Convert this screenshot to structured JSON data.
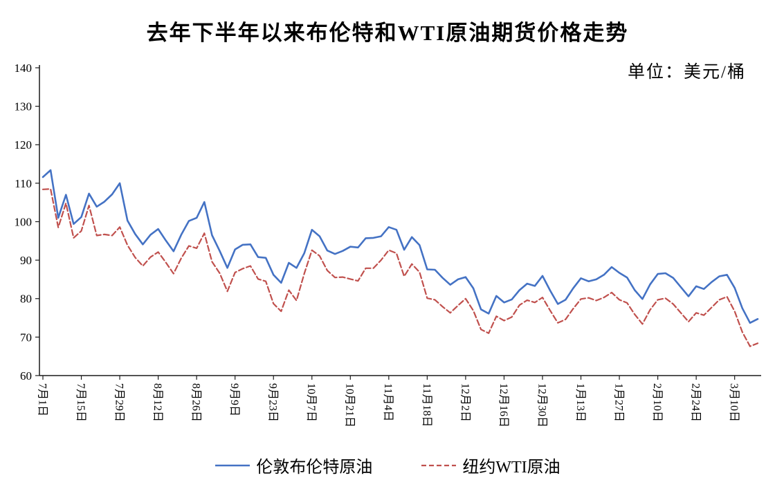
{
  "chart": {
    "title": "去年下半年以来布伦特和WTI原油期货价格走势",
    "unit_label": "单位：美元/桶"
  },
  "chart_data": {
    "type": "line",
    "title": "去年下半年以来布伦特和WTI原油期货价格走势",
    "unit": "美元/桶",
    "xlabel": "",
    "ylabel": "",
    "ylim": [
      60,
      140
    ],
    "ytick_step": 10,
    "grid": false,
    "legend_position": "bottom",
    "x_tick_labels": [
      "7月1日",
      "7月15日",
      "7月29日",
      "8月12日",
      "8月26日",
      "9月9日",
      "9月23日",
      "10月7日",
      "10月21日",
      "11月4日",
      "11月18日",
      "12月2日",
      "12月16日",
      "12月30日",
      "1月13日",
      "1月27日",
      "2月10日",
      "2月24日",
      "3月10日"
    ],
    "x_ticks_every": 5,
    "series": [
      {
        "name": "伦敦布伦特原油",
        "color": "#4472C4",
        "dash": "solid",
        "width": 2.6,
        "values": [
          111.6,
          113.4,
          101.0,
          107.0,
          99.4,
          101.2,
          107.3,
          103.9,
          105.2,
          107.1,
          110.0,
          100.3,
          96.8,
          94.1,
          96.6,
          98.1,
          95.1,
          92.3,
          96.6,
          100.2,
          101.0,
          105.1,
          96.5,
          92.4,
          88.0,
          92.8,
          94.0,
          94.1,
          90.8,
          90.6,
          86.2,
          84.1,
          89.3,
          88.0,
          91.8,
          97.9,
          96.2,
          92.5,
          91.6,
          92.4,
          93.5,
          93.3,
          95.7,
          95.8,
          96.2,
          98.6,
          97.9,
          92.7,
          96.0,
          93.9,
          87.6,
          87.5,
          85.4,
          83.6,
          85.0,
          85.6,
          82.7,
          77.2,
          76.1,
          80.7,
          79.0,
          79.8,
          82.2,
          83.9,
          83.3,
          85.9,
          82.1,
          78.6,
          79.7,
          82.7,
          85.3,
          84.5,
          85.0,
          86.2,
          88.2,
          86.7,
          85.5,
          82.2,
          79.9,
          83.7,
          86.4,
          86.6,
          85.4,
          83.0,
          80.6,
          83.2,
          82.5,
          84.3,
          85.8,
          86.2,
          82.8,
          77.5,
          73.7,
          74.7
        ]
      },
      {
        "name": "纽约WTI原油",
        "color": "#C0504D",
        "dash": "dashed",
        "width": 2.2,
        "values": [
          108.4,
          108.5,
          98.5,
          104.8,
          95.8,
          97.6,
          104.2,
          96.4,
          96.7,
          96.4,
          98.6,
          93.9,
          90.7,
          88.5,
          90.8,
          92.1,
          89.4,
          86.5,
          90.5,
          93.7,
          93.1,
          97.0,
          89.6,
          86.6,
          81.9,
          86.8,
          87.8,
          88.5,
          85.1,
          84.5,
          78.7,
          76.7,
          82.2,
          79.5,
          86.5,
          92.6,
          91.1,
          87.3,
          85.5,
          85.6,
          85.1,
          84.6,
          87.9,
          87.9,
          90.0,
          92.6,
          91.8,
          85.8,
          89.0,
          86.9,
          80.1,
          79.7,
          77.9,
          76.3,
          78.2,
          80.0,
          76.9,
          72.0,
          71.0,
          75.4,
          74.3,
          75.2,
          78.3,
          79.6,
          79.0,
          80.3,
          76.9,
          73.7,
          74.6,
          77.4,
          79.9,
          80.2,
          79.5,
          80.3,
          81.6,
          79.7,
          78.9,
          75.9,
          73.4,
          77.1,
          79.7,
          80.1,
          78.6,
          76.3,
          74.0,
          76.3,
          75.7,
          77.7,
          79.7,
          80.5,
          76.7,
          71.3,
          67.6,
          68.4
        ]
      }
    ]
  }
}
